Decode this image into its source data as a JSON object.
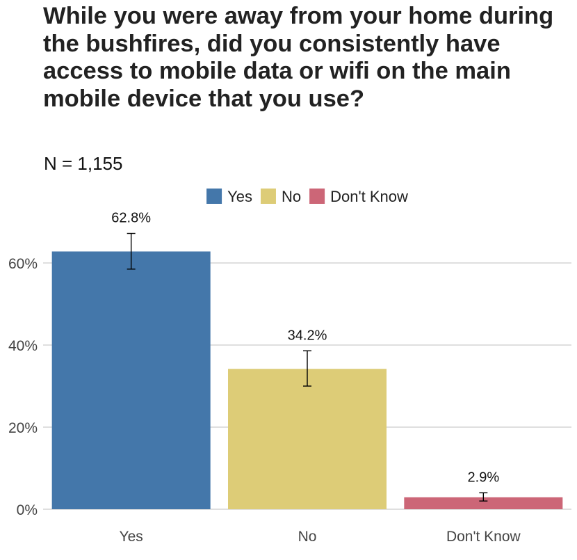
{
  "chart_data": {
    "type": "bar",
    "title": "While you were away from your home during the bushfires, did you consistently have access to mobile data or wifi on the main mobile device that you use?",
    "subtitle": "N = 1,155",
    "categories": [
      "Yes",
      "No",
      "Don't Know"
    ],
    "values": [
      62.8,
      34.2,
      2.9
    ],
    "value_labels": [
      "62.8%",
      "34.2%",
      "2.9%"
    ],
    "error_low": [
      58.5,
      30.0,
      2.0
    ],
    "error_high": [
      67.2,
      38.6,
      4.0
    ],
    "colors": [
      "#4477aa",
      "#ddcc77",
      "#cc6677"
    ],
    "legend": {
      "position": "top",
      "entries": [
        "Yes",
        "No",
        "Don't Know"
      ]
    },
    "xlabel": "",
    "ylabel": "",
    "ylim": [
      0,
      70
    ],
    "yticks": [
      0,
      20,
      40,
      60
    ],
    "ytick_labels": [
      "0%",
      "20%",
      "40%",
      "60%"
    ],
    "grid": "horizontal"
  }
}
